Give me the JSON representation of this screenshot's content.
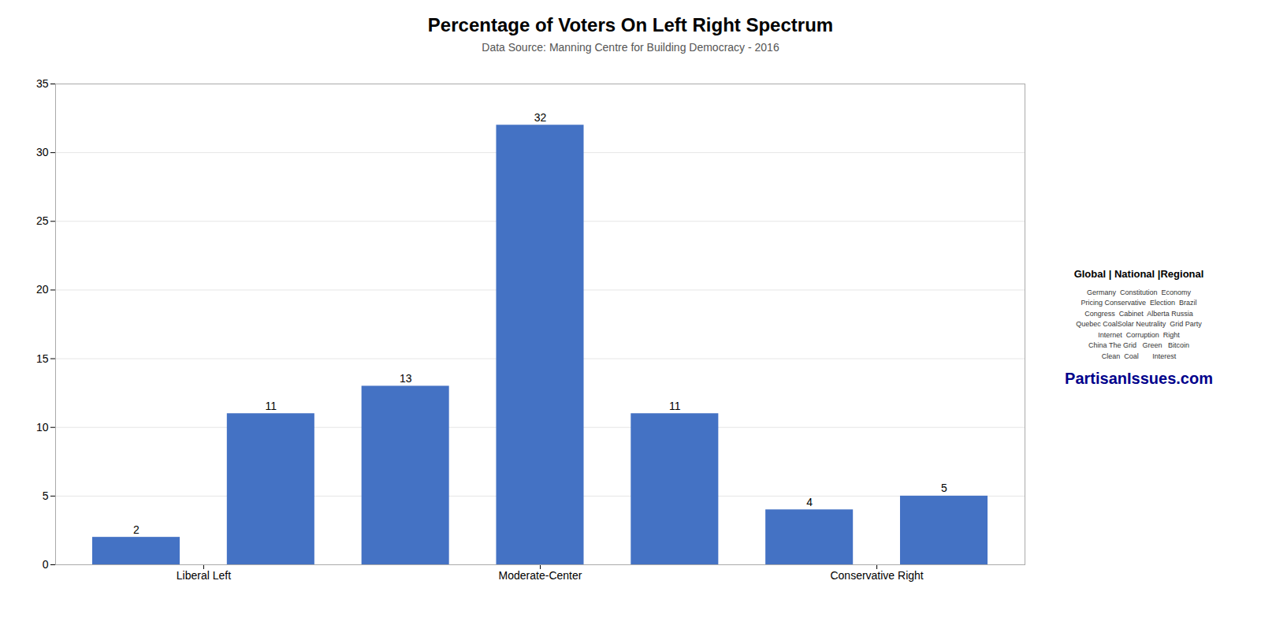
{
  "chart_data": {
    "type": "bar",
    "title": "Percentage of Voters On Left Right Spectrum",
    "subtitle": "Data Source: Manning Centre for Building Democracy - 2016",
    "x": [
      0,
      1,
      2,
      3,
      4,
      5,
      6
    ],
    "values": [
      2,
      11,
      13,
      32,
      11,
      4,
      5
    ],
    "color": "#4472C4",
    "xlim": [
      -0.6,
      6.6
    ],
    "xticks": [
      {
        "value": 0.5,
        "label": "Liberal Left"
      },
      {
        "value": 3,
        "label": "Moderate-Center"
      },
      {
        "value": 5.5,
        "label": "Conservative Right"
      }
    ],
    "ylim": [
      0,
      35
    ],
    "yticks": [
      0,
      5,
      10,
      15,
      20,
      25,
      30,
      35
    ],
    "grid": true,
    "data_labels": true,
    "annotations": [
      {
        "text": "Global | National |Regional"
      },
      {
        "text": "Germany  Constitution  Economy\nPricing Conservative  Election  Brazil\nCongress  Cabinet  Alberta Russia\nQuebec CoalSolar Neutrality  Grid Party\nInternet  Corruption  Right\nChina The Grid   Green   Bitcoin\nClean  Coal       Interest"
      },
      {
        "text": "PartisanIssues.com",
        "color": "#00008B"
      }
    ]
  }
}
